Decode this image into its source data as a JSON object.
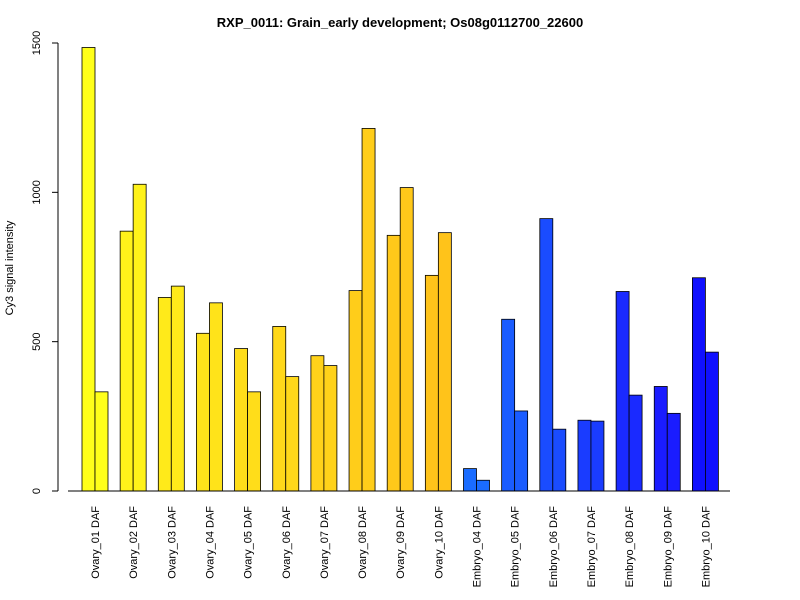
{
  "chart_data": {
    "type": "bar",
    "title": "RXP_0011: Grain_early development; Os08g0112700_22600",
    "xlabel": "",
    "ylabel": "Cy3 signal intensity",
    "ylim": [
      0,
      1500
    ],
    "yticks": [
      "0",
      "500",
      "1000",
      "1500"
    ],
    "grid": false,
    "categories": [
      "Ovary_01 DAF",
      "Ovary_02 DAF",
      "Ovary_03 DAF",
      "Ovary_04 DAF",
      "Ovary_05 DAF",
      "Ovary_06 DAF",
      "Ovary_07 DAF",
      "Ovary_08 DAF",
      "Ovary_09 DAF",
      "Ovary_10 DAF",
      "Embryo_04 DAF",
      "Embryo_05 DAF",
      "Embryo_06 DAF",
      "Embryo_07 DAF",
      "Embryo_08 DAF",
      "Embryo_09 DAF",
      "Embryo_10 DAF"
    ],
    "series": [
      {
        "values": [
          1485,
          870,
          648,
          528,
          477,
          551,
          453,
          671,
          856,
          722,
          75,
          575,
          912,
          237,
          668,
          350,
          714
        ]
      },
      {
        "values": [
          332,
          1027,
          686,
          630,
          332,
          383,
          420,
          1214,
          1016,
          865,
          36,
          268,
          207,
          234,
          321,
          260,
          465
        ]
      }
    ],
    "colors": [
      "#ffff1a",
      "#fff21a",
      "#ffea1a",
      "#ffe31a",
      "#ffdd1a",
      "#ffd81a",
      "#ffd21a",
      "#ffcd1a",
      "#ffc81a",
      "#ffc31a",
      "#1a6cff",
      "#1a5cff",
      "#1a4cff",
      "#1a3cff",
      "#1a2aff",
      "#1a1cff",
      "#1010ff"
    ]
  }
}
